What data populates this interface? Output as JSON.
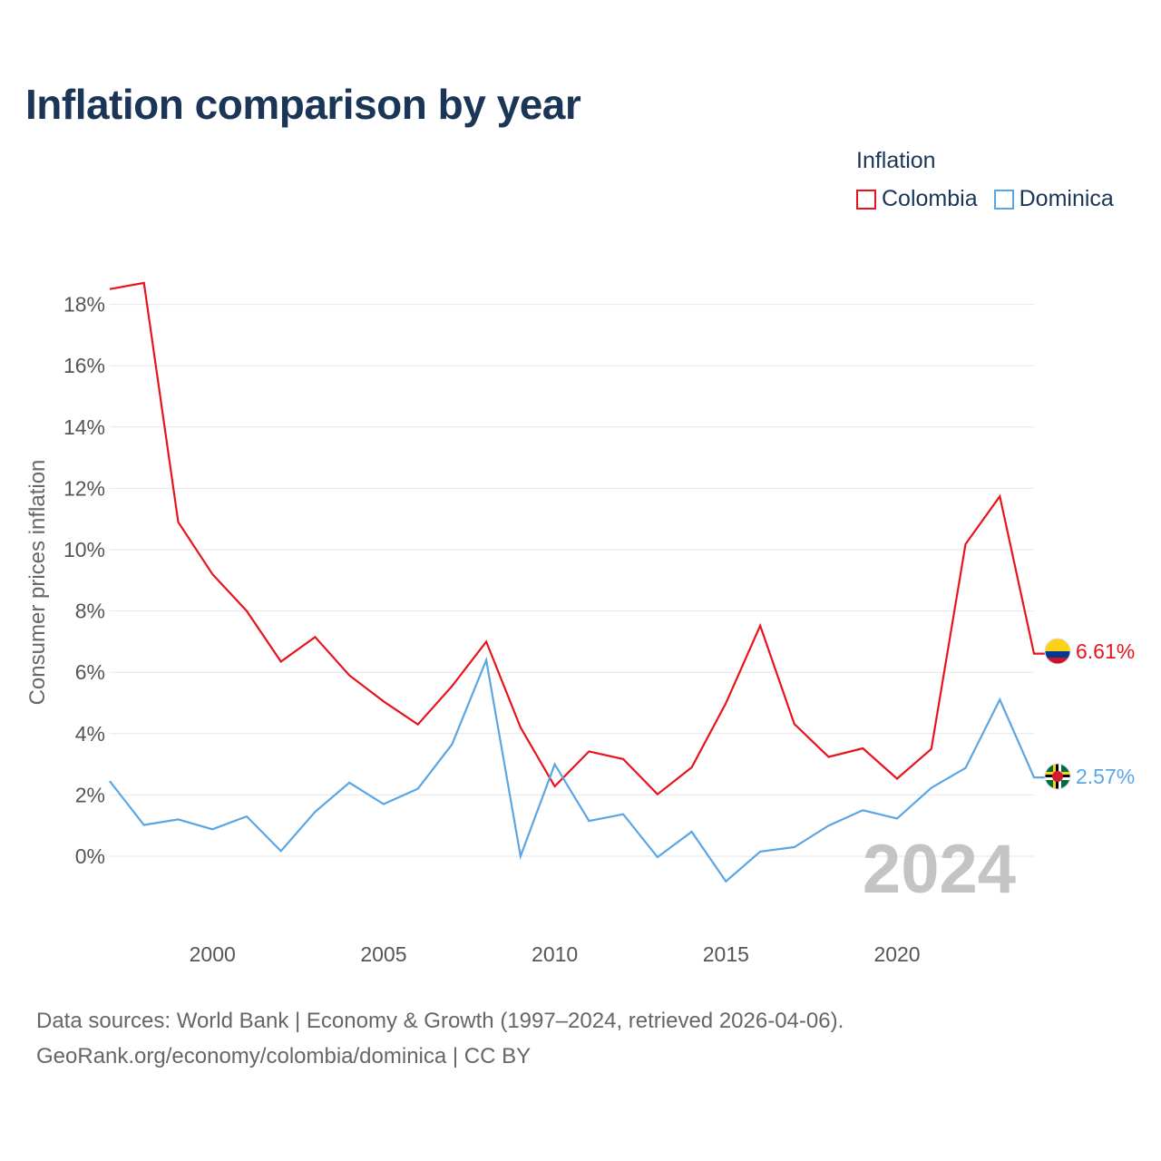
{
  "title": "Inflation comparison by year",
  "legend": {
    "title": "Inflation",
    "items": [
      {
        "label": "Colombia",
        "color": "#e8131b"
      },
      {
        "label": "Dominica",
        "color": "#5aa6e4"
      }
    ]
  },
  "footer": {
    "line1": "Data sources: World Bank | Economy & Growth (1997–2024, retrieved 2026-04-06).",
    "line2": "GeoRank.org/economy/colombia/dominica | CC BY"
  },
  "chart_data": {
    "type": "line",
    "title": "Inflation comparison by year",
    "xlabel": "",
    "ylabel": "Consumer prices inflation",
    "xlim": [
      1997,
      2024
    ],
    "ylim": [
      -2,
      19
    ],
    "x_ticks": [
      2000,
      2005,
      2010,
      2015,
      2020
    ],
    "y_ticks": [
      0,
      2,
      4,
      6,
      8,
      10,
      12,
      14,
      16,
      18
    ],
    "y_tick_labels": [
      "0%",
      "2%",
      "4%",
      "6%",
      "8%",
      "10%",
      "12%",
      "14%",
      "16%",
      "18%"
    ],
    "grid": true,
    "watermark_year": "2024",
    "x": [
      1997,
      1998,
      1999,
      2000,
      2001,
      2002,
      2003,
      2004,
      2005,
      2006,
      2007,
      2008,
      2009,
      2010,
      2011,
      2012,
      2013,
      2014,
      2015,
      2016,
      2017,
      2018,
      2019,
      2020,
      2021,
      2022,
      2023,
      2024
    ],
    "series": [
      {
        "name": "Colombia",
        "color": "#e8131b",
        "end_label": "6.61%",
        "values": [
          18.5,
          18.7,
          10.9,
          9.2,
          8.0,
          6.35,
          7.15,
          5.9,
          5.05,
          4.3,
          5.55,
          7.0,
          4.2,
          2.28,
          3.42,
          3.17,
          2.02,
          2.9,
          4.99,
          7.52,
          4.31,
          3.24,
          3.52,
          2.53,
          3.5,
          10.18,
          11.74,
          6.61
        ]
      },
      {
        "name": "Dominica",
        "color": "#5aa6e4",
        "end_label": "2.57%",
        "values": [
          2.45,
          1.02,
          1.2,
          0.88,
          1.3,
          0.17,
          1.45,
          2.4,
          1.7,
          2.2,
          3.65,
          6.4,
          0.0,
          3.0,
          1.15,
          1.37,
          -0.03,
          0.8,
          -0.82,
          0.15,
          0.3,
          1.0,
          1.5,
          1.23,
          2.23,
          2.88,
          5.11,
          2.57
        ]
      }
    ]
  }
}
